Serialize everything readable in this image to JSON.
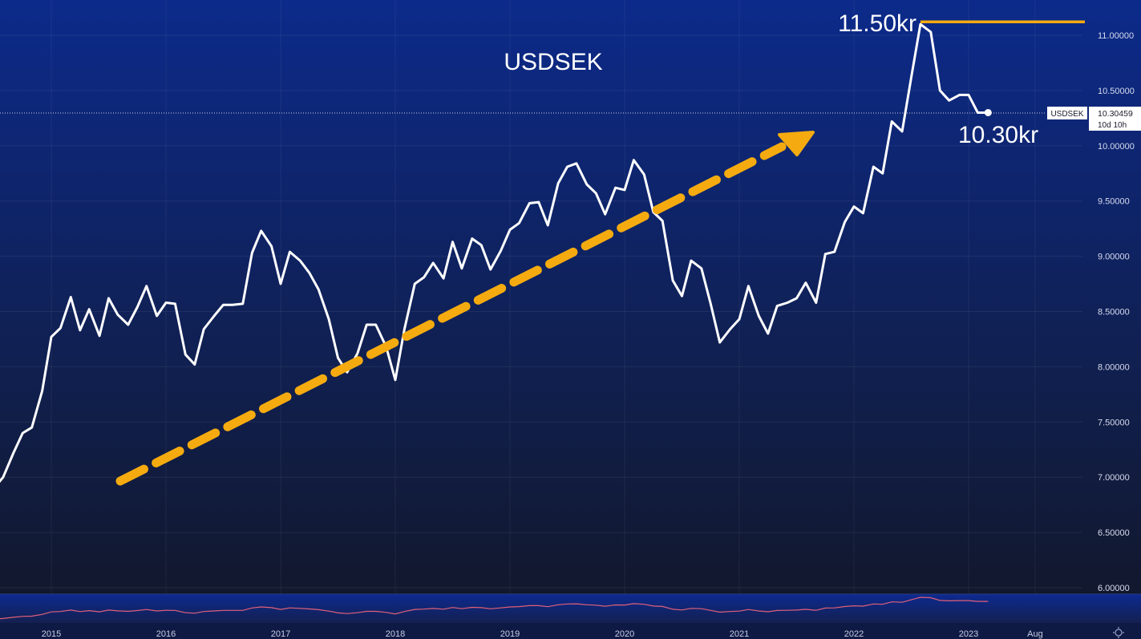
{
  "chart_data": {
    "type": "line",
    "title": "USDSEK",
    "symbol": "USDSEK",
    "last_price_label": "10.30459",
    "countdown_label": "10d 10h",
    "annotations": {
      "high_label": "11.50kr",
      "current_label": "10.30kr"
    },
    "ylim": [
      5.9,
      11.25
    ],
    "y_ticks": [
      "11.00000",
      "10.50000",
      "10.00000",
      "9.50000",
      "9.00000",
      "8.50000",
      "8.00000",
      "7.50000",
      "7.00000",
      "6.50000",
      "6.00000"
    ],
    "x_ticks": [
      "2015",
      "2016",
      "2017",
      "2018",
      "2019",
      "2020",
      "2021",
      "2022",
      "2023",
      "Aug"
    ],
    "x": [
      2014.5,
      2014.58,
      2014.67,
      2014.75,
      2014.83,
      2014.92,
      2015.0,
      2015.08,
      2015.17,
      2015.25,
      2015.33,
      2015.42,
      2015.5,
      2015.58,
      2015.67,
      2015.75,
      2015.83,
      2015.92,
      2016.0,
      2016.08,
      2016.17,
      2016.25,
      2016.33,
      2016.42,
      2016.5,
      2016.58,
      2016.67,
      2016.75,
      2016.83,
      2016.92,
      2017.0,
      2017.08,
      2017.17,
      2017.25,
      2017.33,
      2017.42,
      2017.5,
      2017.58,
      2017.67,
      2017.75,
      2017.83,
      2017.92,
      2018.0,
      2018.08,
      2018.17,
      2018.25,
      2018.33,
      2018.42,
      2018.5,
      2018.58,
      2018.67,
      2018.75,
      2018.83,
      2018.92,
      2019.0,
      2019.08,
      2019.17,
      2019.25,
      2019.33,
      2019.42,
      2019.5,
      2019.58,
      2019.67,
      2019.75,
      2019.83,
      2019.92,
      2020.0,
      2020.08,
      2020.17,
      2020.25,
      2020.33,
      2020.42,
      2020.5,
      2020.58,
      2020.67,
      2020.75,
      2020.83,
      2020.92,
      2021.0,
      2021.08,
      2021.17,
      2021.25,
      2021.33,
      2021.42,
      2021.5,
      2021.58,
      2021.67,
      2021.75,
      2021.83,
      2021.92,
      2022.0,
      2022.08,
      2022.17,
      2022.25,
      2022.33,
      2022.42,
      2022.5,
      2022.58,
      2022.67,
      2022.75,
      2022.83,
      2022.92,
      2023.0,
      2023.08,
      2023.17
    ],
    "values": [
      6.9,
      7.0,
      7.22,
      7.4,
      7.45,
      7.78,
      8.27,
      8.35,
      8.63,
      8.33,
      8.52,
      8.28,
      8.62,
      8.47,
      8.38,
      8.54,
      8.73,
      8.46,
      8.58,
      8.57,
      8.11,
      8.02,
      8.34,
      8.46,
      8.56,
      8.56,
      8.57,
      9.03,
      9.23,
      9.09,
      8.75,
      9.04,
      8.96,
      8.85,
      8.7,
      8.43,
      8.08,
      7.95,
      8.12,
      8.38,
      8.38,
      8.18,
      7.88,
      8.34,
      8.75,
      8.81,
      8.94,
      8.8,
      9.13,
      8.89,
      9.16,
      9.1,
      8.88,
      9.05,
      9.24,
      9.3,
      9.48,
      9.49,
      9.28,
      9.66,
      9.81,
      9.84,
      9.65,
      9.57,
      9.38,
      9.62,
      9.6,
      9.87,
      9.74,
      9.4,
      9.32,
      8.78,
      8.64,
      8.96,
      8.89,
      8.57,
      8.22,
      8.34,
      8.43,
      8.73,
      8.46,
      8.3,
      8.55,
      8.58,
      8.62,
      8.76,
      8.58,
      9.02,
      9.04,
      9.31,
      9.45,
      9.39,
      9.81,
      9.75,
      10.22,
      10.13,
      10.62,
      11.1,
      11.03,
      10.5,
      10.41,
      10.46,
      10.46,
      10.3,
      10.3
    ]
  }
}
